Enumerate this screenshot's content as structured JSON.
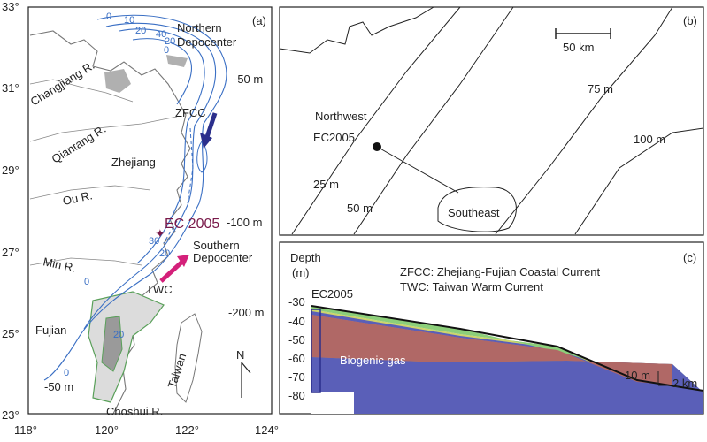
{
  "panel_a": {
    "letter": "(a)",
    "lat_ticks": [
      "33°",
      "31°",
      "29°",
      "27°",
      "25°",
      "23°"
    ],
    "lon_ticks": [
      "118°",
      "120°",
      "122°",
      "124°"
    ],
    "rivers": [
      "Changjiang R.",
      "Qiantang R.",
      "Ou R.",
      "Min R.",
      "Choshui R."
    ],
    "regions": [
      "Zhejiang",
      "Fujian",
      "Taiwan"
    ],
    "depocenters": {
      "northern": [
        "Northern",
        "Depocenter"
      ],
      "southern": [
        "Southern",
        "Depocenter"
      ]
    },
    "currents": [
      "ZFCC",
      "TWC"
    ],
    "core": "EC 2005",
    "depth_labels": [
      "-50 m",
      "-100 m",
      "-200 m",
      "-50 m"
    ],
    "isopach_labels": [
      "0",
      "10",
      "20",
      "40",
      "0",
      "20",
      "30",
      "20",
      "0",
      "20",
      "0"
    ],
    "north": "N",
    "colors": {
      "isopach": "#3a6fc4",
      "zfcc_arrow": "#2b2f8c",
      "twc_arrow": "#d4207a",
      "core": "#7a1a4a",
      "shaded": "#c8c8c8",
      "green": "#5aa05a"
    }
  },
  "panel_b": {
    "letter": "(b)",
    "scale": "50 km",
    "labels": [
      "Northwest",
      "EC2005",
      "25 m",
      "50 m",
      "75 m",
      "100 m",
      "Southeast"
    ]
  },
  "panel_c": {
    "letter": "(c)",
    "ylabel_1": "Depth",
    "ylabel_2": "(m)",
    "y_ticks": [
      "-30",
      "-40",
      "-50",
      "-60",
      "-70",
      "-80"
    ],
    "core": "EC2005",
    "legend_1": "ZFCC: Zhejiang-Fujian Coastal Current",
    "legend_2": "TWC: Taiwan Warm Current",
    "gas": "Biogenic gas",
    "scale_v": "10 m",
    "scale_h": "2 km",
    "colors": {
      "red": "#c97a78",
      "green": "#8ccf7a",
      "blue": "#5a5fb8",
      "yellow": "#cfd46a"
    }
  }
}
